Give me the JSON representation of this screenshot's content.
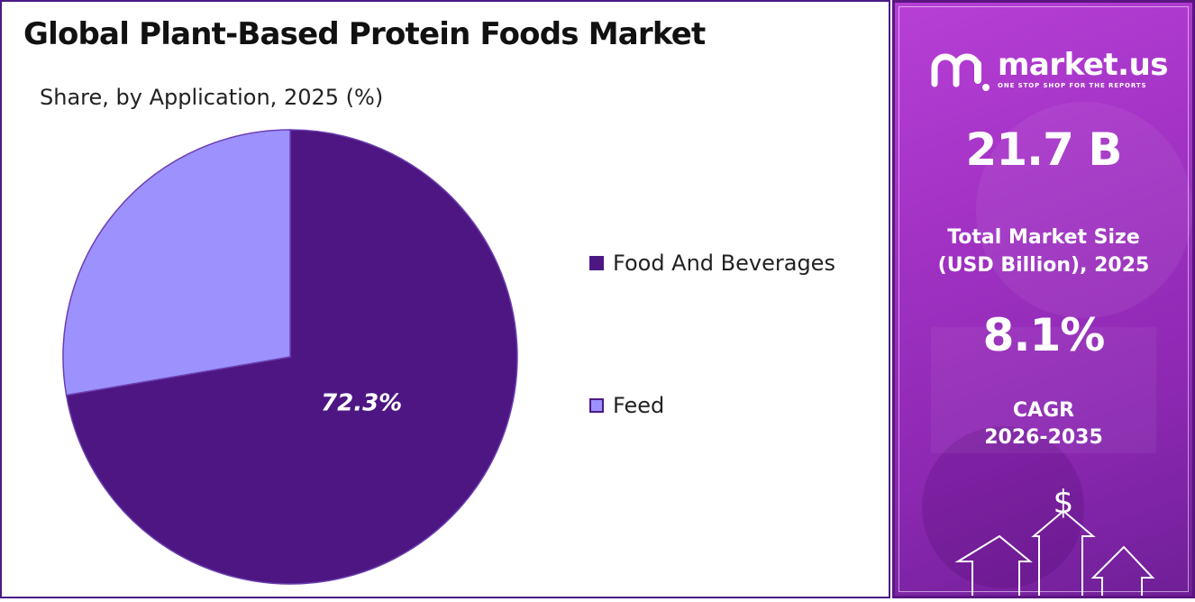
{
  "header": {
    "title": "Global Plant-Based Protein Foods Market",
    "subtitle": "Share, by Application, 2025 (%)"
  },
  "chart_data": {
    "type": "pie",
    "title": "Global Plant-Based Protein Foods Market",
    "subtitle": "Share, by Application, 2025 (%)",
    "categories": [
      "Food And Beverages",
      "Feed"
    ],
    "values": [
      72.3,
      27.7
    ],
    "data_labels": [
      "72.3%",
      ""
    ],
    "colors": [
      "#4d1682",
      "#9d91fe"
    ],
    "legend_position": "right"
  },
  "sidebar": {
    "brand_name": "market.us",
    "brand_tagline": "ONE STOP SHOP FOR THE REPORTS",
    "market_size_value": "21.7 B",
    "market_size_caption_line1": "Total Market Size",
    "market_size_caption_line2": "(USD Billion), 2025",
    "cagr_value": "8.1%",
    "cagr_caption_line1": "CAGR",
    "cagr_caption_line2": "2026-2035",
    "currency_symbol": "$"
  },
  "icons": [
    "market-us-logo-icon",
    "dollar-icon",
    "up-arrow-icon"
  ]
}
